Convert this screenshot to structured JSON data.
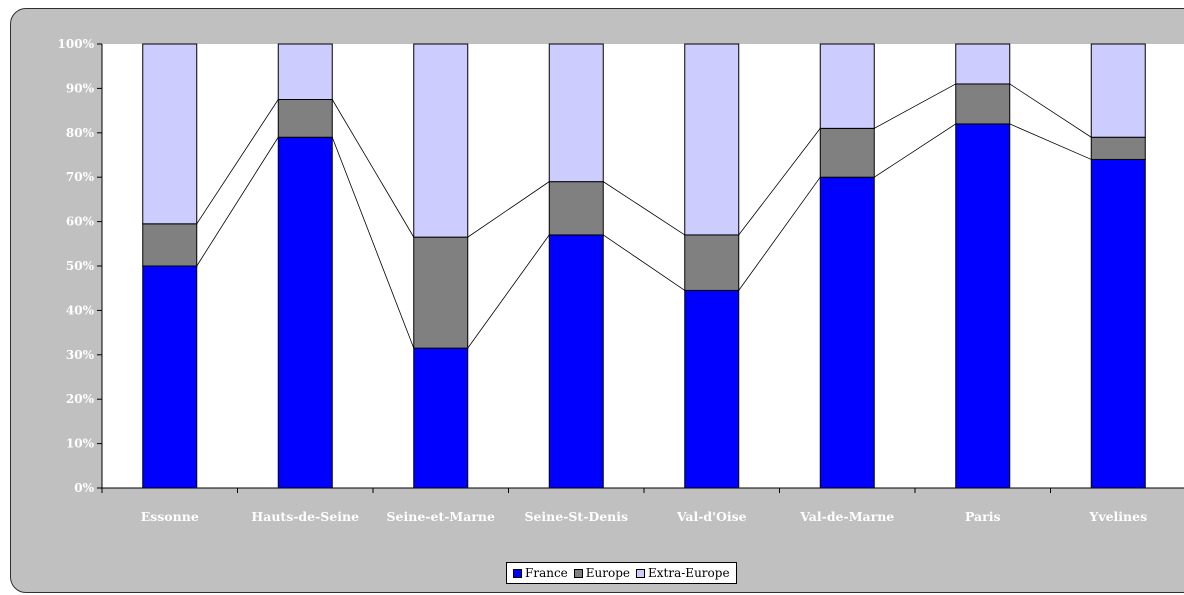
{
  "chart_data": {
    "type": "bar",
    "stacked": true,
    "percent_stacked": true,
    "categories": [
      "Essonne",
      "Hauts-de-Seine",
      "Seine-et-Marne",
      "Seine-St-Denis",
      "Val-d'Oise",
      "Val-de-Marne",
      "Paris",
      "Yvelines"
    ],
    "series": [
      {
        "name": "France",
        "color": "#0000ff",
        "values": [
          50,
          79,
          31.5,
          57,
          44.5,
          70,
          82,
          74
        ]
      },
      {
        "name": "Europe",
        "color": "#808080",
        "values": [
          9.5,
          8.5,
          25,
          12,
          12.5,
          11,
          9,
          5
        ]
      },
      {
        "name": "Extra-Europe",
        "color": "#ccccff",
        "values": [
          40.5,
          12.5,
          43.5,
          31,
          43,
          19,
          9,
          21
        ]
      }
    ],
    "yticks": [
      "0%",
      "10%",
      "20%",
      "30%",
      "40%",
      "50%",
      "60%",
      "70%",
      "80%",
      "90%",
      "100%"
    ],
    "ylim": [
      0,
      100
    ],
    "xlabel": "",
    "ylabel": "",
    "grid": false,
    "series_lines": true,
    "legend_position": "bottom",
    "plot_background": "#ffffff",
    "chart_background": "#c0c0c0"
  }
}
